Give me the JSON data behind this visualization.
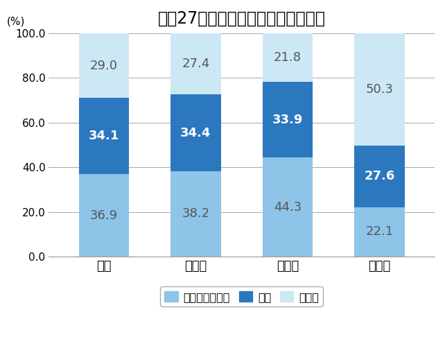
{
  "title": "平成27年国勢調査　調査票回収状況",
  "categories": [
    "全国",
    "山口県",
    "愛知県",
    "沖縄県"
  ],
  "internet": [
    36.9,
    38.2,
    44.3,
    22.1
  ],
  "postal": [
    34.1,
    34.4,
    33.9,
    27.6
  ],
  "surveyor": [
    29.0,
    27.4,
    21.8,
    50.3
  ],
  "color_internet": "#8ec4e8",
  "color_postal": "#2b78bf",
  "color_surveyor": "#cce8f5",
  "ylabel": "(%)",
  "ylim": [
    0,
    100
  ],
  "yticks": [
    0.0,
    20.0,
    40.0,
    60.0,
    80.0,
    100.0
  ],
  "legend_labels": [
    "インターネット",
    "郵送",
    "調査員"
  ],
  "title_fontsize": 17,
  "axis_fontsize": 11,
  "label_fontsize": 13,
  "tick_fontsize": 11,
  "xtick_fontsize": 13,
  "background_color": "#ffffff"
}
